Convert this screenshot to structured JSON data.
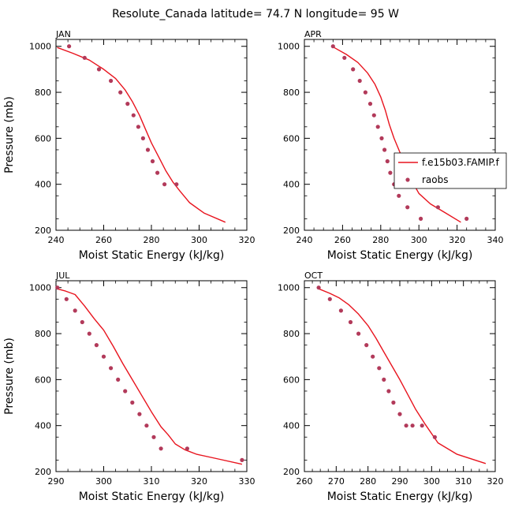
{
  "title": "Resolute_Canada   latitude= 74.7 N longitude= 95 W",
  "colors": {
    "model": "#e8141e",
    "obs": "#b23a5a",
    "axis": "#000000"
  },
  "legend": {
    "model_label": "f.e15b03.FAMIP.f",
    "obs_label": "raobs"
  },
  "chart_data": [
    {
      "type": "line",
      "title": "JAN",
      "xlabel": "Moist Static Energy (kJ/kg)",
      "ylabel": "Pressure (mb)",
      "xlim": [
        240,
        320
      ],
      "ylim": [
        1030,
        200
      ],
      "xticks": [
        240,
        260,
        280,
        300,
        320
      ],
      "yticks": [
        200,
        400,
        600,
        800,
        1000
      ],
      "series": [
        {
          "name": "f.e15b03.FAMIP.f",
          "kind": "line",
          "x": [
            240.5,
            247,
            254,
            260,
            265,
            269,
            272,
            275,
            277.5,
            280,
            283,
            286,
            289,
            292,
            296,
            302,
            311
          ],
          "y": [
            995,
            970,
            940,
            900,
            860,
            810,
            760,
            700,
            640,
            580,
            520,
            460,
            410,
            370,
            320,
            275,
            235
          ]
        },
        {
          "name": "raobs",
          "kind": "scatter",
          "x": [
            245.5,
            252,
            258,
            263,
            267,
            270,
            272.5,
            274.5,
            276.5,
            278.5,
            280.5,
            282.5,
            285.5,
            290.5
          ],
          "y": [
            1000,
            950,
            900,
            850,
            800,
            750,
            700,
            650,
            600,
            550,
            500,
            450,
            400,
            400
          ]
        }
      ]
    },
    {
      "type": "line",
      "title": "APR",
      "xlabel": "Moist Static Energy (kJ/kg)",
      "ylabel": "",
      "xlim": [
        240,
        340
      ],
      "ylim": [
        1030,
        200
      ],
      "xticks": [
        240,
        260,
        280,
        300,
        320,
        340
      ],
      "yticks": [
        200,
        400,
        600,
        800,
        1000
      ],
      "series": [
        {
          "name": "f.e15b03.FAMIP.f",
          "kind": "line",
          "x": [
            255.5,
            262,
            268,
            273,
            277,
            280,
            282.5,
            284.5,
            287,
            290,
            293,
            296,
            300,
            306,
            314,
            322
          ],
          "y": [
            995,
            965,
            930,
            885,
            835,
            780,
            720,
            660,
            600,
            540,
            480,
            420,
            360,
            315,
            275,
            235
          ]
        },
        {
          "name": "raobs",
          "kind": "scatter",
          "x": [
            255,
            261,
            265.5,
            269,
            272,
            274.5,
            276.5,
            278.5,
            280.5,
            282,
            283.5,
            285,
            287,
            289.5,
            294,
            301,
            310,
            325
          ],
          "y": [
            1000,
            950,
            900,
            850,
            800,
            750,
            700,
            650,
            600,
            550,
            500,
            450,
            400,
            350,
            300,
            250,
            300,
            250
          ]
        }
      ]
    },
    {
      "type": "line",
      "title": "JUL",
      "xlabel": "Moist Static Energy (kJ/kg)",
      "ylabel": "Pressure (mb)",
      "xlim": [
        290,
        330
      ],
      "ylim": [
        1030,
        200
      ],
      "xticks": [
        290,
        300,
        310,
        320,
        330
      ],
      "yticks": [
        200,
        400,
        600,
        800,
        1000
      ],
      "series": [
        {
          "name": "f.e15b03.FAMIP.f",
          "kind": "line",
          "x": [
            290.2,
            292,
            294,
            296,
            298,
            300,
            302,
            304,
            306,
            308,
            310,
            312,
            313.5,
            315,
            317,
            319.5,
            324,
            329
          ],
          "y": [
            995,
            985,
            970,
            920,
            865,
            815,
            745,
            670,
            600,
            530,
            460,
            395,
            360,
            320,
            295,
            275,
            255,
            232
          ]
        },
        {
          "name": "raobs",
          "kind": "scatter",
          "x": [
            290.3,
            292.2,
            294,
            295.5,
            297,
            298.5,
            300,
            301.5,
            303,
            304.5,
            306,
            307.5,
            309,
            310.5,
            312,
            317.5,
            329
          ],
          "y": [
            1000,
            950,
            900,
            850,
            800,
            750,
            700,
            650,
            600,
            550,
            500,
            450,
            400,
            350,
            300,
            300,
            250
          ]
        }
      ]
    },
    {
      "type": "line",
      "title": "OCT",
      "xlabel": "Moist Static Energy (kJ/kg)",
      "ylabel": "",
      "xlim": [
        260,
        320
      ],
      "ylim": [
        1030,
        200
      ],
      "xticks": [
        260,
        270,
        280,
        290,
        300,
        310,
        320
      ],
      "yticks": [
        200,
        400,
        600,
        800,
        1000
      ],
      "series": [
        {
          "name": "f.e15b03.FAMIP.f",
          "kind": "line",
          "x": [
            264.5,
            268,
            271,
            274,
            277,
            280,
            282.5,
            285,
            287.5,
            290,
            292.5,
            295,
            298,
            302,
            308,
            317
          ],
          "y": [
            995,
            975,
            955,
            925,
            885,
            835,
            780,
            720,
            660,
            600,
            535,
            470,
            405,
            325,
            275,
            235
          ]
        },
        {
          "name": "raobs",
          "kind": "scatter",
          "x": [
            264.5,
            268,
            271.5,
            274.5,
            277,
            279.5,
            281.5,
            283.5,
            285,
            286.5,
            288,
            290,
            292,
            294,
            297,
            301
          ],
          "y": [
            1000,
            950,
            900,
            850,
            800,
            750,
            700,
            650,
            600,
            550,
            500,
            450,
            400,
            400,
            400,
            350
          ]
        }
      ]
    }
  ]
}
